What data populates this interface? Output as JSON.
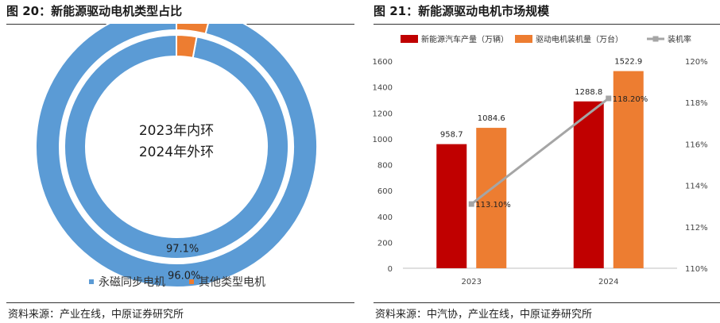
{
  "left": {
    "title": "图 20：新能源驱动电机类型占比",
    "source": "资料来源：产业在线，中原证券研究所"
  },
  "right": {
    "title": "图 21：新能源驱动电机市场规模",
    "source": "资料来源：中汽协，产业在线，中原证券研究所"
  },
  "colors": {
    "blue": "#5b9bd5",
    "orange": "#ed7d31",
    "darkred": "#c00000",
    "gray": "#a5a5a5"
  },
  "chart_data": [
    {
      "type": "pie",
      "subtype": "donut",
      "center_text": [
        "2023年内环",
        "2024年外环"
      ],
      "legend": [
        "永磁同步电机",
        "其他类型电机"
      ],
      "legend_position": "bottom",
      "series": [
        {
          "values": [
            97.1,
            2.9
          ],
          "labels": [
            "97.1%",
            ""
          ]
        },
        {
          "values": [
            96.0,
            4.0
          ],
          "labels": [
            "96.0%",
            ""
          ]
        }
      ]
    },
    {
      "type": "bar",
      "categories": [
        "2023",
        "2024"
      ],
      "series": [
        {
          "name": "新能源汽车产量（万辆）",
          "values": [
            958.7,
            1288.8
          ],
          "labels": [
            "958.7",
            "1288.8"
          ],
          "axis": "left"
        },
        {
          "name": "驱动电机装机量（万台）",
          "values": [
            1084.6,
            1522.9
          ],
          "labels": [
            "1084.6",
            "1522.9"
          ],
          "axis": "left"
        },
        {
          "name": "装机率",
          "type": "line",
          "values": [
            113.1,
            118.2
          ],
          "labels": [
            "113.10%",
            "118.20%"
          ],
          "axis": "right"
        }
      ],
      "y_left": {
        "ylim": [
          0,
          1600
        ],
        "ticks": [
          "0",
          "200",
          "400",
          "600",
          "800",
          "1000",
          "1200",
          "1400",
          "1600"
        ]
      },
      "y_right": {
        "ylim": [
          110,
          120
        ],
        "ticks": [
          "110%",
          "112%",
          "114%",
          "116%",
          "118%",
          "120%"
        ]
      },
      "legend_position": "top",
      "grid": false
    }
  ]
}
